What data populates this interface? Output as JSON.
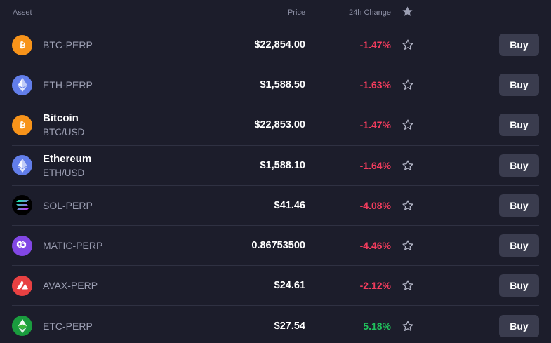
{
  "header": {
    "asset_label": "Asset",
    "price_label": "Price",
    "change_label": "24h Change",
    "star_icon": "star-filled-icon"
  },
  "colors": {
    "background": "#1c1d2b",
    "negative": "#f23c5d",
    "positive": "#20c05c",
    "button": "#3a3c4e"
  },
  "rows": [
    {
      "name": "BTC-PERP",
      "sub": "",
      "icon": "bitcoin-icon",
      "icon_color": "#f7931a",
      "price": "$22,854.00",
      "change": "-1.47%",
      "trend": "neg",
      "buy_label": "Buy"
    },
    {
      "name": "ETH-PERP",
      "sub": "",
      "icon": "ethereum-icon",
      "icon_color": "#627eea",
      "price": "$1,588.50",
      "change": "-1.63%",
      "trend": "neg",
      "buy_label": "Buy"
    },
    {
      "name": "Bitcoin",
      "sub": "BTC/USD",
      "icon": "bitcoin-icon",
      "icon_color": "#f7931a",
      "price": "$22,853.00",
      "change": "-1.47%",
      "trend": "neg",
      "buy_label": "Buy"
    },
    {
      "name": "Ethereum",
      "sub": "ETH/USD",
      "icon": "ethereum-icon",
      "icon_color": "#627eea",
      "price": "$1,588.10",
      "change": "-1.64%",
      "trend": "neg",
      "buy_label": "Buy"
    },
    {
      "name": "SOL-PERP",
      "sub": "",
      "icon": "solana-icon",
      "icon_color": "#000000",
      "price": "$41.46",
      "change": "-4.08%",
      "trend": "neg",
      "buy_label": "Buy"
    },
    {
      "name": "MATIC-PERP",
      "sub": "",
      "icon": "polygon-icon",
      "icon_color": "#8247e5",
      "price": "0.86753500",
      "change": "-4.46%",
      "trend": "neg",
      "buy_label": "Buy"
    },
    {
      "name": "AVAX-PERP",
      "sub": "",
      "icon": "avalanche-icon",
      "icon_color": "#e84142",
      "price": "$24.61",
      "change": "-2.12%",
      "trend": "neg",
      "buy_label": "Buy"
    },
    {
      "name": "ETC-PERP",
      "sub": "",
      "icon": "ethereum-classic-icon",
      "icon_color": "#1a9c3e",
      "price": "$27.54",
      "change": "5.18%",
      "trend": "pos",
      "buy_label": "Buy"
    }
  ]
}
